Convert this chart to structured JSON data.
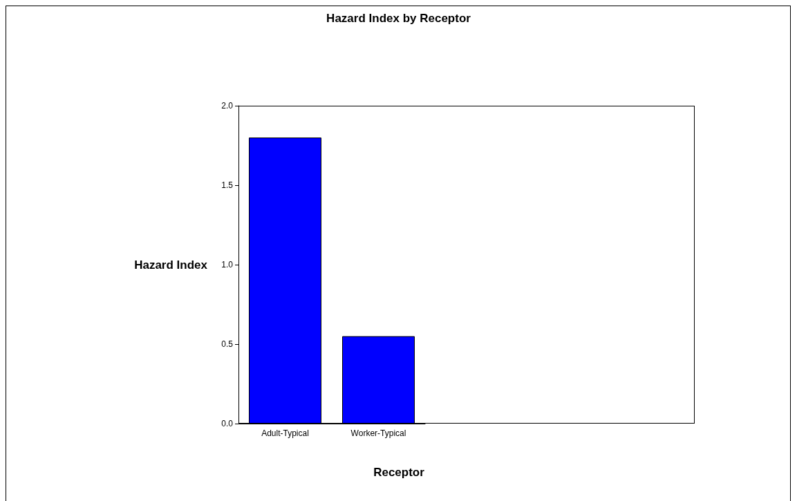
{
  "chart_data": {
    "type": "bar",
    "title": "Hazard Index by Receptor",
    "xlabel": "Receptor",
    "ylabel": "Hazard Index",
    "categories": [
      "Adult-Typical",
      "Worker-Typical"
    ],
    "values": [
      1.8,
      0.55
    ],
    "color": "#0000ff",
    "ylim": [
      0,
      2
    ],
    "yticks": [
      {
        "value": 0,
        "label": "0.0"
      },
      {
        "value": 0.5,
        "label": "0.5"
      },
      {
        "value": 1,
        "label": "1.0"
      },
      {
        "value": 1.5,
        "label": "1.5"
      },
      {
        "value": 2,
        "label": "2.0"
      }
    ],
    "grid": false
  }
}
